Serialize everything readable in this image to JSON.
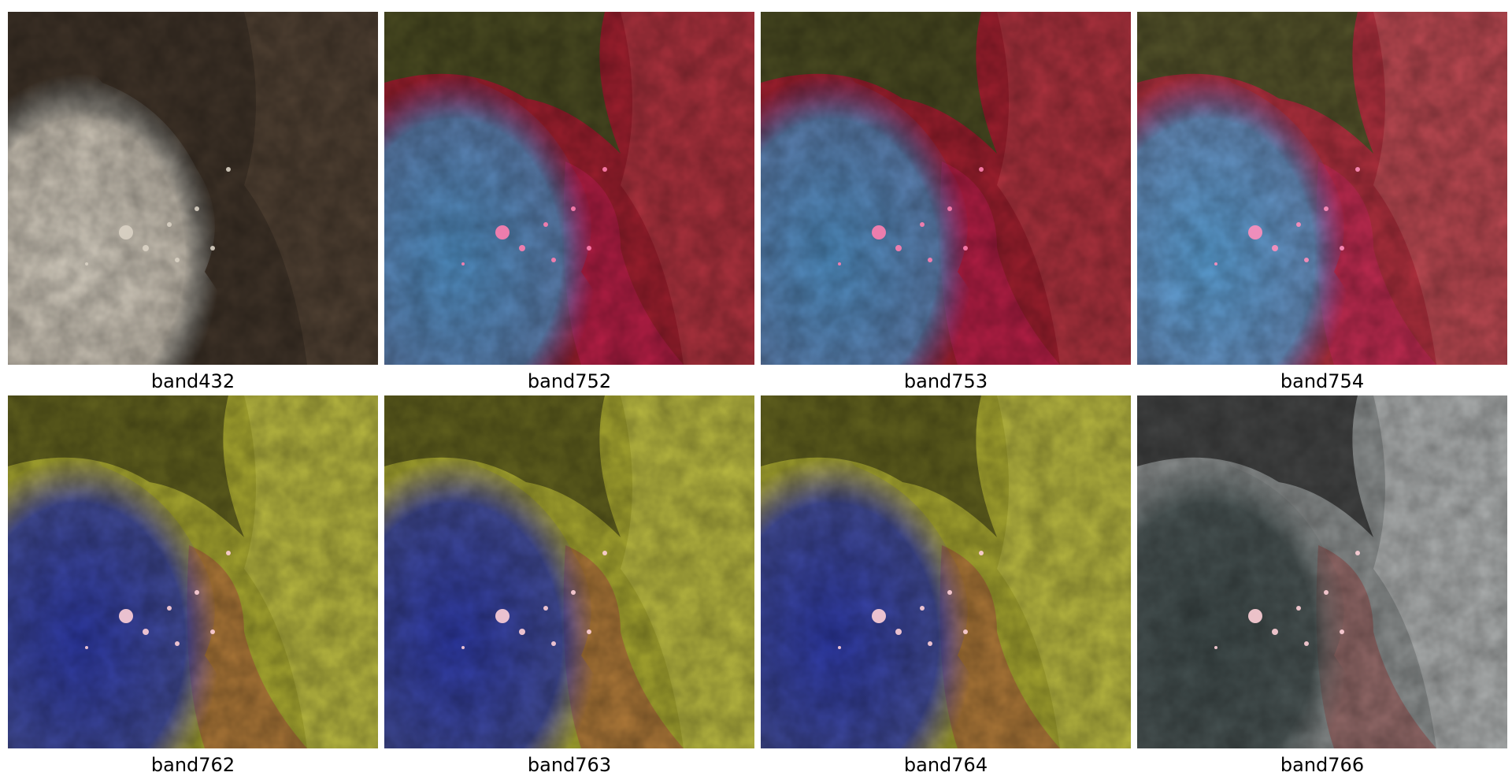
{
  "panels": [
    {
      "label": "band432",
      "palette": "natural"
    },
    {
      "label": "band752",
      "palette": "swir-red"
    },
    {
      "label": "band753",
      "palette": "swir-red"
    },
    {
      "label": "band754",
      "palette": "swir-red-light"
    },
    {
      "label": "band762",
      "palette": "yellow-blue"
    },
    {
      "label": "band763",
      "palette": "yellow-blue"
    },
    {
      "label": "band764",
      "palette": "yellow-blue"
    },
    {
      "label": "band766",
      "palette": "gray-red"
    }
  ],
  "colors": {
    "natural": {
      "land": "#3f3328",
      "landLight": "#5a4a38",
      "smoke": "#d9d2c4",
      "smokeEdge": "#8fa3ad",
      "fire": "#d9d2c4"
    },
    "swir-red": {
      "land": "#9e1f2e",
      "landLight": "#b8404a",
      "smoke": "#4f8fc4",
      "smokeEdge": "#5a46a8",
      "veg": "#2c5a1e",
      "burn": "#c81e5a",
      "fire": "#ff7fb0"
    },
    "swir-red-light": {
      "land": "#b0303e",
      "landLight": "#c45a60",
      "smoke": "#5aa0d6",
      "smokeEdge": "#5a4cb0",
      "veg": "#355f24",
      "burn": "#d02860",
      "fire": "#ff8fbc"
    },
    "yellow-blue": {
      "land": "#a8a830",
      "landLight": "#c4c44c",
      "smoke": "#2e3aa8",
      "smokeEdge": "#6a50c0",
      "veg": "#4a4a18",
      "burn": "#b05040",
      "fire": "#ffd0d8"
    },
    "gray-red": {
      "land": "#8e9292",
      "landLight": "#c4c8c8",
      "smoke": "#3e4a4a",
      "smokeEdge": "#5a6464",
      "veg": "#2a2a2a",
      "burn": "#9a4a48",
      "fire": "#ffd0d8"
    }
  }
}
